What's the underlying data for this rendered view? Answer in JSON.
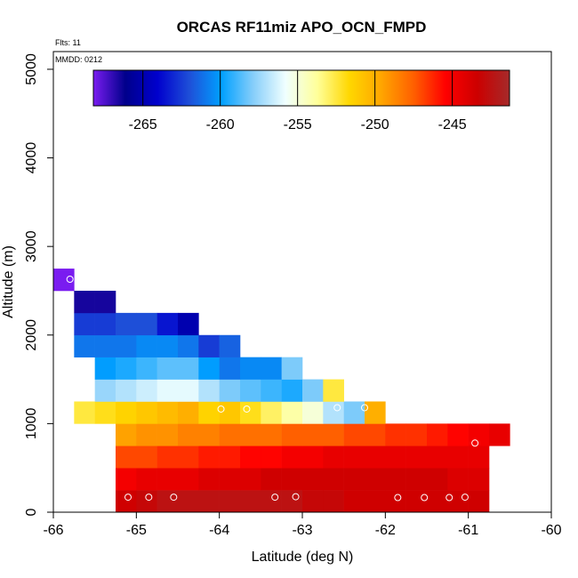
{
  "chart_data": {
    "type": "heatmap",
    "title": "ORCAS RF11miz APO_OCN_FMPD",
    "annotations": {
      "flights": "Flts: 11",
      "date": "MMDD: 0212"
    },
    "xlabel": "Latitude (deg N)",
    "ylabel": "Altitude (m)",
    "xlim": [
      -66,
      -60
    ],
    "ylim": [
      0,
      5200
    ],
    "xticks": [
      -66,
      -65,
      -64,
      -63,
      -62,
      -61,
      -60
    ],
    "yticks": [
      0,
      1000,
      2000,
      3000,
      4000,
      5000
    ],
    "colorbar": {
      "range": [
        -268.2,
        -241.3
      ],
      "ticks": [
        -265,
        -260,
        -255,
        -250,
        -245
      ],
      "palette": [
        "#7a1cf0",
        "#00008b",
        "#0000cd",
        "#1e4fd8",
        "#00a0ff",
        "#87cefa",
        "#f0ffff",
        "#ffff99",
        "#ffd700",
        "#ffa500",
        "#ff6000",
        "#ff0000",
        "#cc0000",
        "#a52a2a"
      ]
    },
    "cell": {
      "dlat": 0.25,
      "dalt": 250
    },
    "rows": [
      {
        "alt": 125,
        "lat0": -65.25,
        "values": [
          -243.5,
          -243.0,
          -242.5,
          -242.5,
          -242.5,
          -242.5,
          -242.5,
          -242.5,
          -242.5,
          -243.0,
          -243.0,
          -243.5,
          -243.5,
          -243.5,
          -243.5,
          -243.5,
          -243.5,
          -243.5
        ]
      },
      {
        "alt": 375,
        "lat0": -65.25,
        "values": [
          -245.0,
          -244.5,
          -244.5,
          -244.5,
          -244.0,
          -244.0,
          -244.0,
          -243.5,
          -243.5,
          -243.5,
          -243.5,
          -243.5,
          -243.5,
          -243.5,
          -243.5,
          -243.5,
          -244.0,
          -244.0
        ]
      },
      {
        "alt": 625,
        "lat0": -65.25,
        "values": [
          -247.0,
          -247.0,
          -246.5,
          -246.5,
          -246.0,
          -246.0,
          -245.5,
          -245.5,
          -245.0,
          -245.0,
          -244.5,
          -244.5,
          -244.5,
          -244.5,
          -244.5,
          -244.5,
          -244.5,
          -244.5
        ]
      },
      {
        "alt": 875,
        "lat0": -65.25,
        "values": [
          -249.5,
          -249.0,
          -249.0,
          -248.5,
          -248.5,
          -248.0,
          -248.0,
          -248.0,
          -247.5,
          -247.5,
          -247.5,
          -247.0,
          -247.0,
          -246.5,
          -246.5,
          -246.0,
          -245.5,
          -245.0,
          -244.5
        ]
      },
      {
        "alt": 1125,
        "lat0": -65.75,
        "values": [
          -252.5,
          -252.0,
          -251.5,
          -251.0,
          -250.5,
          -250.0,
          -251.5,
          -251.0,
          -252.0,
          -253.0,
          -254.0,
          -255.0,
          -257.0,
          -258.0,
          -250.0
        ]
      },
      {
        "alt": 1375,
        "lat0": -65.5,
        "values": [
          -257.5,
          -257.0,
          -256.5,
          -256.0,
          -256.0,
          -257.0,
          -258.0,
          -258.5,
          -259.0,
          -259.5,
          -258.0,
          -252.5
        ]
      },
      {
        "alt": 1625,
        "lat0": -65.5,
        "values": [
          -260.0,
          -259.5,
          -259.0,
          -258.5,
          -258.5,
          -260.0,
          -261.0,
          -260.5,
          -260.5,
          -258.0
        ]
      },
      {
        "alt": 1875,
        "lat0": -65.75,
        "values": [
          -261.0,
          -261.0,
          -261.0,
          -260.5,
          -260.5,
          -261.0,
          -262.5,
          -261.5
        ]
      },
      {
        "alt": 2125,
        "lat0": -65.75,
        "values": [
          -262.5,
          -262.5,
          -262.0,
          -262.0,
          -263.5,
          -265.0
        ]
      },
      {
        "alt": 2375,
        "lat0": -65.75,
        "values": [
          -266.5,
          -266.5
        ]
      },
      {
        "alt": 2625,
        "lat0": -66.0,
        "values": [
          -268.2
        ]
      }
    ],
    "points": [
      {
        "lat": -65.1,
        "alt": 170
      },
      {
        "lat": -64.85,
        "alt": 170
      },
      {
        "lat": -64.55,
        "alt": 170
      },
      {
        "lat": -63.33,
        "alt": 170
      },
      {
        "lat": -63.08,
        "alt": 175
      },
      {
        "lat": -61.85,
        "alt": 165
      },
      {
        "lat": -61.53,
        "alt": 165
      },
      {
        "lat": -61.23,
        "alt": 165
      },
      {
        "lat": -61.04,
        "alt": 170
      },
      {
        "lat": -60.92,
        "alt": 780
      },
      {
        "lat": -63.98,
        "alt": 1165
      },
      {
        "lat": -63.67,
        "alt": 1165
      },
      {
        "lat": -62.58,
        "alt": 1180
      },
      {
        "lat": -62.25,
        "alt": 1180
      },
      {
        "lat": -65.8,
        "alt": 2630
      }
    ]
  }
}
